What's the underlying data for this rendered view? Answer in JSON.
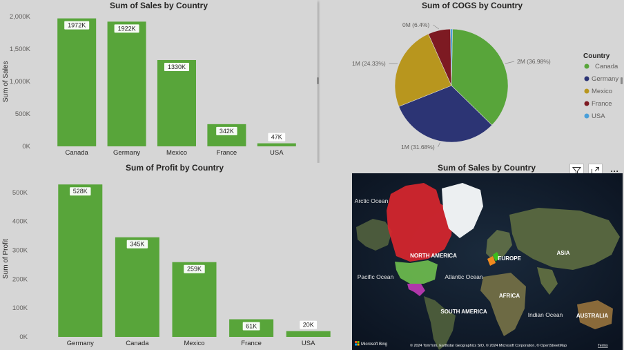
{
  "chart_data": [
    {
      "type": "bar",
      "title": "Sum of Sales by Country",
      "ylabel": "Sum of Sales",
      "xlabel": "",
      "categories": [
        "Canada",
        "Germany",
        "Mexico",
        "France",
        "USA"
      ],
      "values": [
        1972000,
        1922000,
        1330000,
        342000,
        47000
      ],
      "data_labels": [
        "1972K",
        "1922K",
        "1330K",
        "342K",
        "47K"
      ],
      "yticks": [
        "0K",
        "500K",
        "1,000K",
        "1,500K",
        "2,000K"
      ],
      "ylim": [
        0,
        2000000
      ],
      "color": "#58a53a"
    },
    {
      "type": "pie",
      "title": "Sum of COGS by Country",
      "legend_title": "Country",
      "legend_position": "right",
      "categories": [
        "Canada",
        "Germany",
        "Mexico",
        "France",
        "USA"
      ],
      "values": [
        36.98,
        31.68,
        24.33,
        6.4,
        0.61
      ],
      "slice_labels": [
        "2M (36.98%)",
        "1M (31.68%)",
        "1M (24.33%)",
        "0M (6.4%)",
        ""
      ],
      "colors": [
        "#58a53a",
        "#2c3474",
        "#b8961e",
        "#7d1a22",
        "#4a9fd9"
      ]
    },
    {
      "type": "bar",
      "title": "Sum of Profit by Country",
      "ylabel": "Sum of Profit",
      "xlabel": "",
      "categories": [
        "Germany",
        "Canada",
        "Mexico",
        "France",
        "USA"
      ],
      "values": [
        528000,
        345000,
        259000,
        61000,
        20000
      ],
      "data_labels": [
        "528K",
        "345K",
        "259K",
        "61K",
        "20K"
      ],
      "yticks": [
        "0K",
        "100K",
        "200K",
        "300K",
        "400K",
        "500K"
      ],
      "ylim": [
        0,
        550000
      ],
      "color": "#58a53a"
    }
  ],
  "map": {
    "title": "Sum of Sales by Country",
    "labels": {
      "arctic": "Arctic Ocean",
      "north_america": "NORTH AMERICA",
      "europe": "EUROPE",
      "asia": "ASIA",
      "pacific": "Pacific Ocean",
      "atlantic": "Atlantic Ocean",
      "africa": "AFRICA",
      "south_america": "SOUTH AMERICA",
      "indian": "Indian Ocean",
      "australia": "AUSTRALIA"
    },
    "bing_logo": "Microsoft Bing",
    "copyright": "© 2024 TomTom, Earthstar Geographics SIO, © 2024 Microsoft Corporation, © OpenStreetMap",
    "terms": "Terms"
  },
  "toolbar": {
    "more_label": "···"
  }
}
